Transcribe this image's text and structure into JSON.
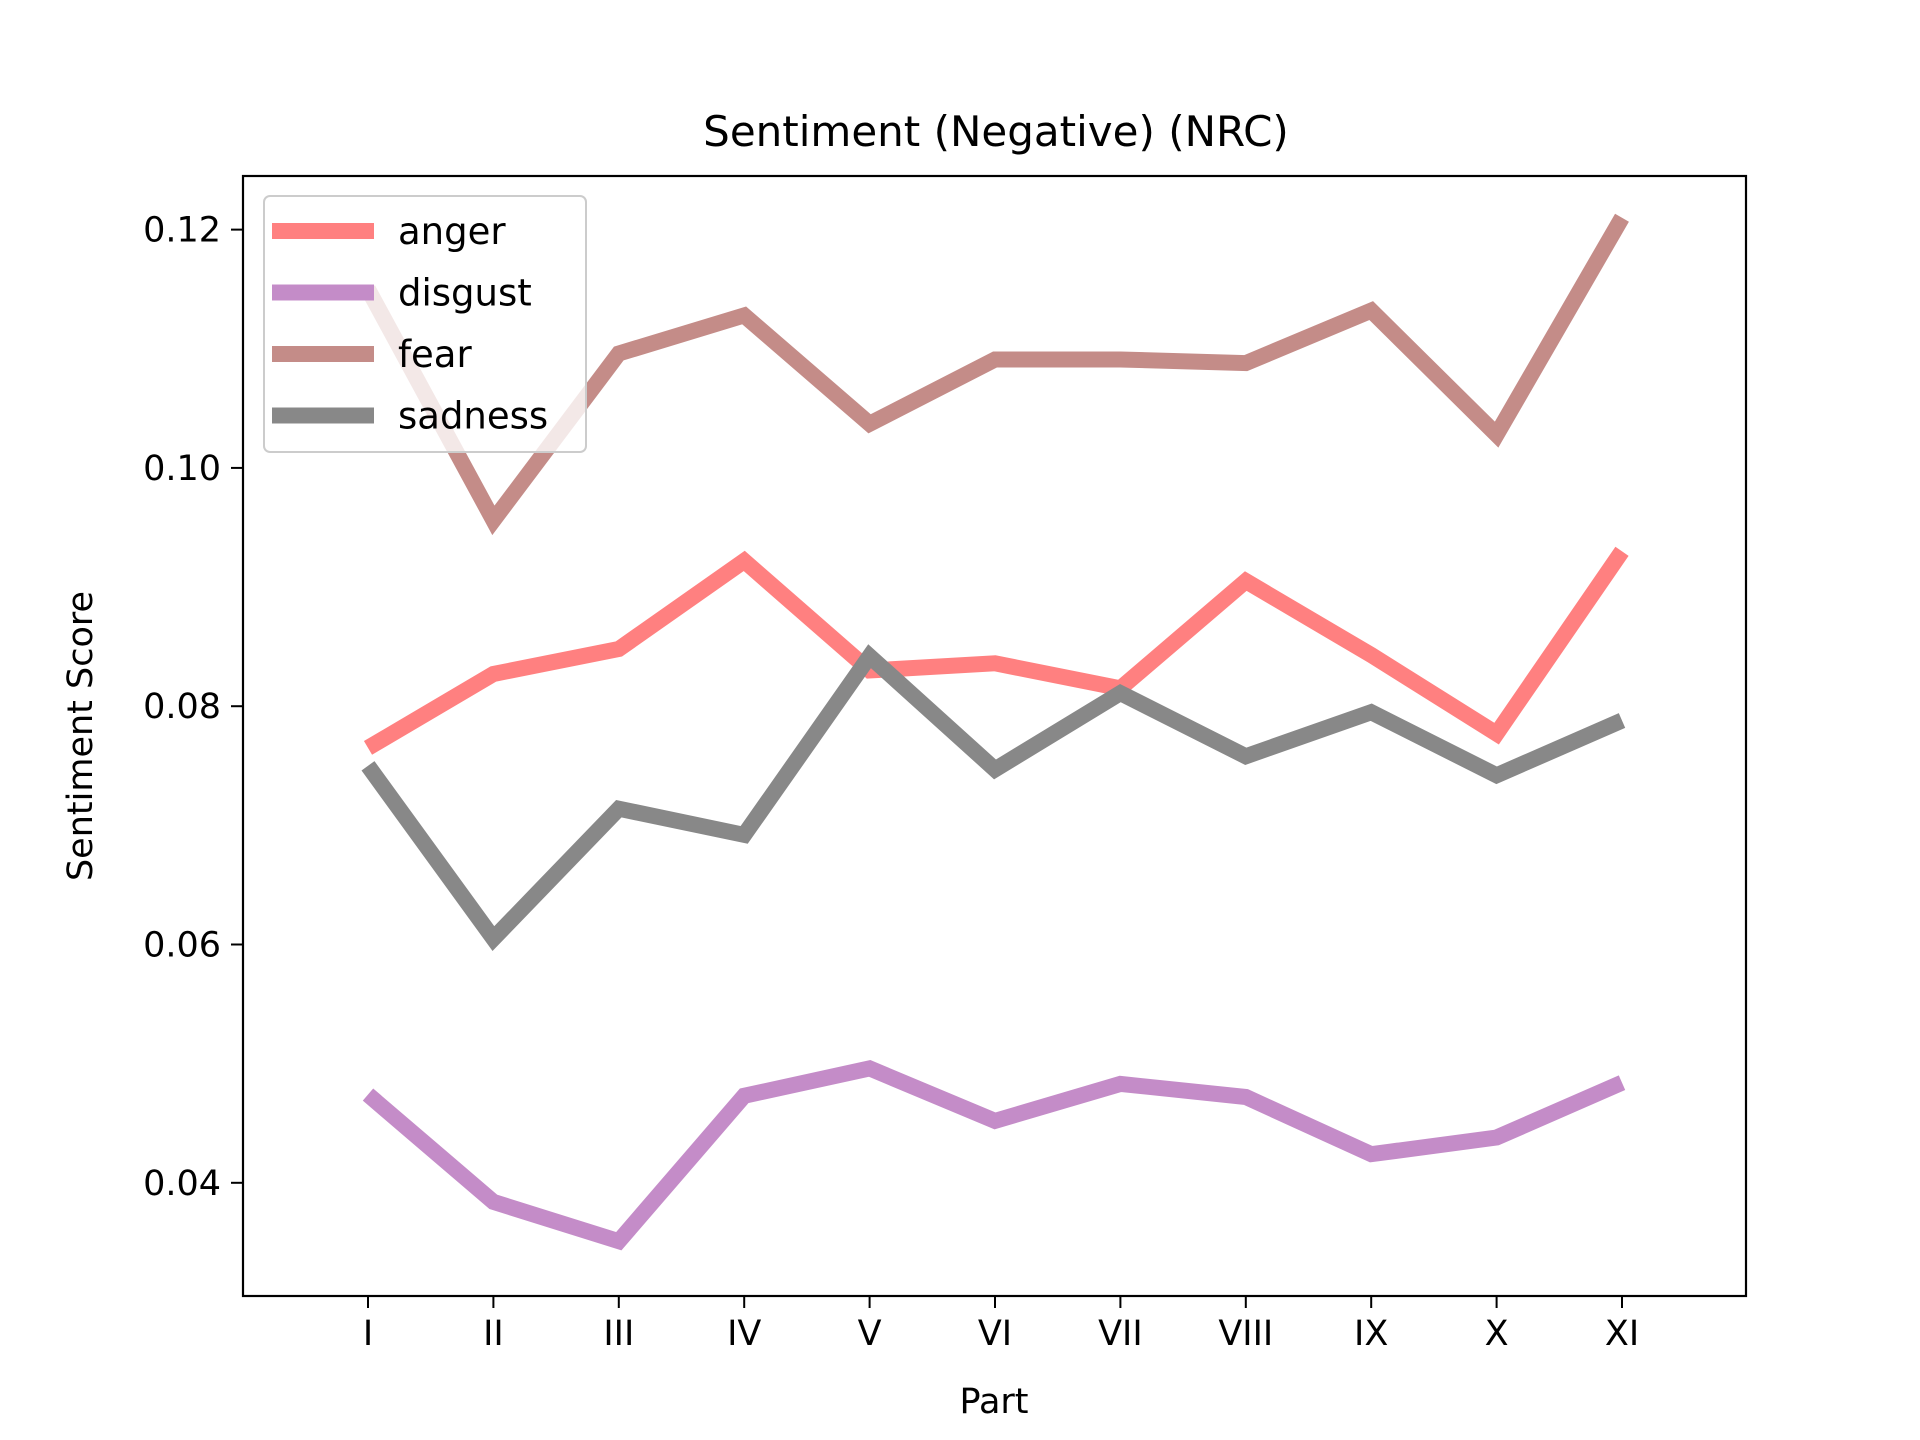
{
  "chart_data": {
    "type": "line",
    "title": "Sentiment (Negative) (NRC)",
    "xlabel": "Part",
    "ylabel": "Sentiment Score",
    "categories": [
      "I",
      "II",
      "III",
      "IV",
      "V",
      "VI",
      "VII",
      "VIII",
      "IX",
      "X",
      "XI"
    ],
    "ylim": [
      0.0305,
      0.1245
    ],
    "yticks": [
      0.04,
      0.06,
      0.08,
      0.1,
      0.12
    ],
    "ytick_labels": [
      "0.04",
      "0.06",
      "0.08",
      "0.10",
      "0.12"
    ],
    "grid": false,
    "legend_position": "top-left",
    "series": [
      {
        "name": "anger",
        "color": "#ff8080",
        "values": [
          0.0765,
          0.0827,
          0.0848,
          0.0922,
          0.083,
          0.0836,
          0.0815,
          0.0905,
          0.0843,
          0.0777,
          0.093
        ]
      },
      {
        "name": "disgust",
        "color": "#c48cc8",
        "values": [
          0.0474,
          0.0384,
          0.0351,
          0.0473,
          0.0496,
          0.0452,
          0.0483,
          0.0472,
          0.0424,
          0.0438,
          0.0484
        ]
      },
      {
        "name": "fear",
        "color": "#c48c88",
        "values": [
          0.115,
          0.0956,
          0.1096,
          0.1128,
          0.1037,
          0.1091,
          0.1091,
          0.1088,
          0.1132,
          0.1028,
          0.121
        ]
      },
      {
        "name": "sadness",
        "color": "#888888",
        "values": [
          0.075,
          0.0605,
          0.0714,
          0.0692,
          0.0842,
          0.0747,
          0.0811,
          0.0758,
          0.0795,
          0.0742,
          0.0788
        ]
      }
    ]
  }
}
